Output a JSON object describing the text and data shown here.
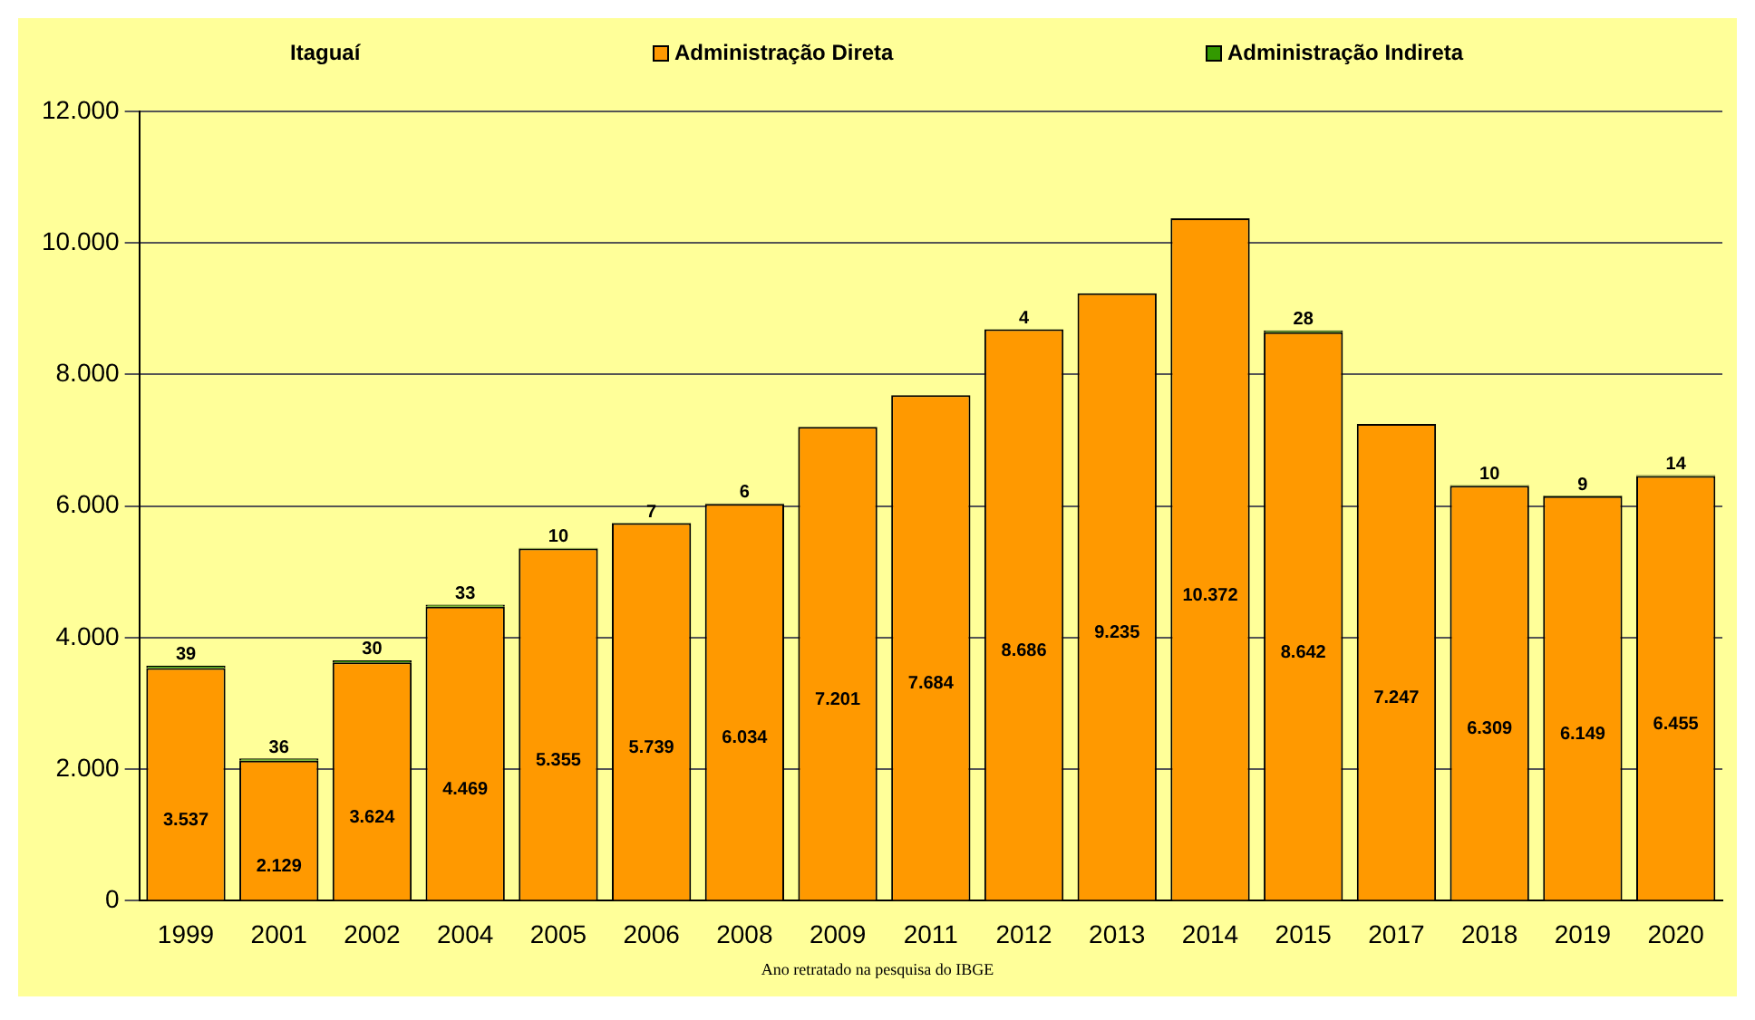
{
  "chart_data": {
    "type": "bar",
    "stacked": true,
    "legend_title": "Itaguaí",
    "legend": "top",
    "grid": "y",
    "xlabel": "Ano retratado na pesquisa do IBGE",
    "categories": [
      "1999",
      "2001",
      "2002",
      "2004",
      "2005",
      "2006",
      "2008",
      "2009",
      "2011",
      "2012",
      "2013",
      "2014",
      "2015",
      "2017",
      "2018",
      "2019",
      "2020"
    ],
    "ylim": [
      0,
      12000
    ],
    "yticks": [
      {
        "value": 0,
        "label": "0"
      },
      {
        "value": 2000,
        "label": "2.000"
      },
      {
        "value": 4000,
        "label": "4.000"
      },
      {
        "value": 6000,
        "label": "6.000"
      },
      {
        "value": 8000,
        "label": "8.000"
      },
      {
        "value": 10000,
        "label": "10.000"
      },
      {
        "value": 12000,
        "label": "12.000"
      }
    ],
    "series": [
      {
        "name": "Administração Direta",
        "color": "#ff9900",
        "values": [
          3537,
          2129,
          3624,
          4469,
          5355,
          5739,
          6034,
          7201,
          7684,
          8686,
          9235,
          10372,
          8642,
          7247,
          6309,
          6149,
          6455
        ],
        "value_labels": [
          "3.537",
          "2.129",
          "3.624",
          "4.469",
          "5.355",
          "5.739",
          "6.034",
          "7.201",
          "7.684",
          "8.686",
          "9.235",
          "10.372",
          "8.642",
          "7.247",
          "6.309",
          "6.149",
          "6.455"
        ]
      },
      {
        "name": "Administração Indireta",
        "color": "#339900",
        "values": [
          39,
          36,
          30,
          33,
          10,
          7,
          6,
          null,
          null,
          4,
          null,
          null,
          28,
          null,
          10,
          9,
          14
        ],
        "value_labels": [
          "39",
          "36",
          "30",
          "33",
          "10",
          "7",
          "6",
          null,
          null,
          "4",
          null,
          null,
          "28",
          null,
          "10",
          "9",
          "14"
        ]
      }
    ]
  }
}
